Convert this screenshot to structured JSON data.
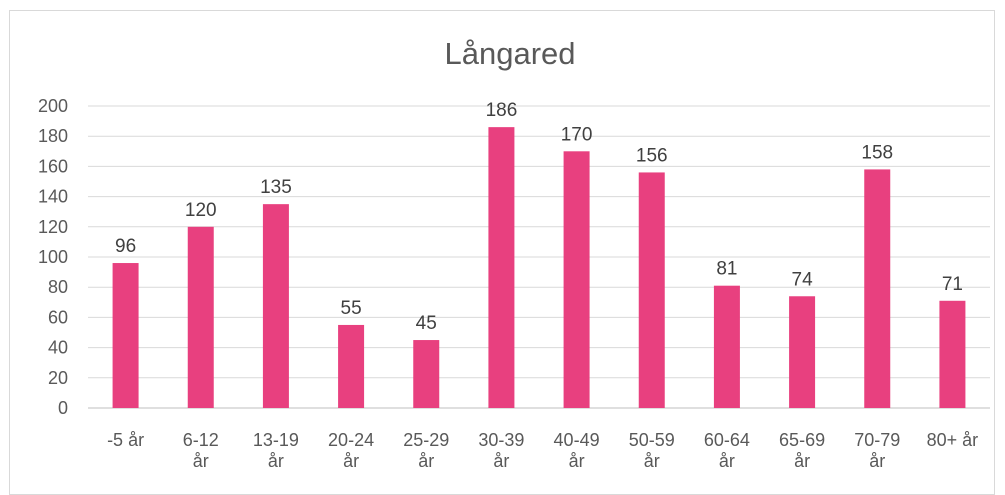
{
  "chart_data": {
    "type": "bar",
    "title": "Långared",
    "categories": [
      [
        "-5 år"
      ],
      [
        "6-12",
        "år"
      ],
      [
        "13-19",
        "år"
      ],
      [
        "20-24",
        "år"
      ],
      [
        "25-29",
        "år"
      ],
      [
        "30-39",
        "år"
      ],
      [
        "40-49",
        "år"
      ],
      [
        "50-59",
        "år"
      ],
      [
        "60-64",
        "år"
      ],
      [
        "65-69",
        "år"
      ],
      [
        "70-79",
        "år"
      ],
      [
        "80+ år"
      ]
    ],
    "values": [
      96,
      120,
      135,
      55,
      45,
      186,
      170,
      156,
      81,
      74,
      158,
      71
    ],
    "ylim": [
      0,
      200
    ],
    "yticks": [
      0,
      20,
      40,
      60,
      80,
      100,
      120,
      140,
      160,
      180,
      200
    ],
    "grid": true,
    "data_labels": true,
    "bar_color": "#e8407f"
  }
}
